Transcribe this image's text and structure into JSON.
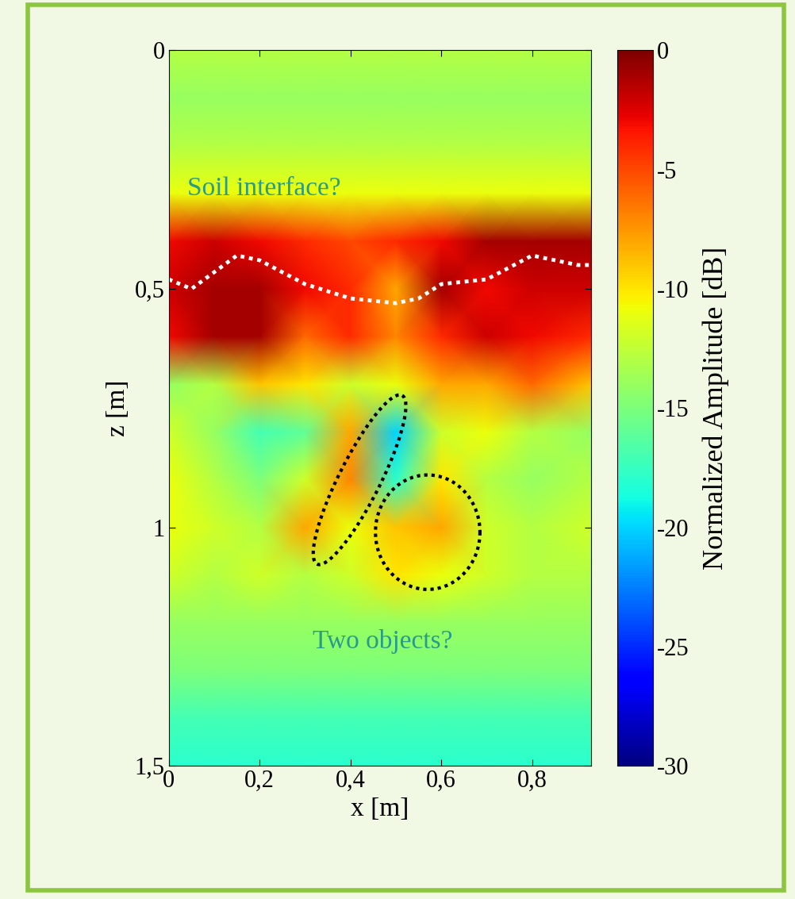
{
  "chart_data": {
    "type": "heatmap",
    "xlabel": "x [m]",
    "ylabel": "z [m]",
    "colorbar_label": "Normalized Amplitude [dB]",
    "x": [
      0,
      0.1,
      0.2,
      0.3,
      0.4,
      0.5,
      0.6,
      0.7,
      0.8,
      0.93
    ],
    "z": [
      0,
      0.1,
      0.2,
      0.3,
      0.4,
      0.5,
      0.6,
      0.7,
      0.8,
      0.9,
      1.0,
      1.1,
      1.2,
      1.3,
      1.4,
      1.5
    ],
    "cells": [
      [
        -13,
        -13,
        -13,
        -13,
        -13,
        -13,
        -13,
        -13,
        -13,
        -13
      ],
      [
        -14,
        -14,
        -14,
        -14,
        -14,
        -14,
        -14,
        -14,
        -14,
        -14
      ],
      [
        -13,
        -13,
        -13,
        -13,
        -13,
        -13,
        -13,
        -13,
        -13,
        -13
      ],
      [
        -11,
        -11,
        -11,
        -11,
        -11,
        -11,
        -11,
        -11,
        -11,
        -11
      ],
      [
        -3,
        -2,
        -3,
        -4,
        -5,
        -4,
        -3,
        -1,
        -1,
        -1
      ],
      [
        -2,
        -1,
        -1,
        -3,
        -4,
        -8,
        -1,
        -3,
        -2,
        -2
      ],
      [
        -3,
        -1,
        -1,
        -6,
        -4,
        -7,
        -4,
        -2,
        -3,
        -4
      ],
      [
        -14,
        -13,
        -9,
        -10,
        -12,
        -11,
        -8,
        -8,
        -6,
        -9
      ],
      [
        -12,
        -14,
        -17,
        -16,
        -8,
        -20,
        -12,
        -11,
        -13,
        -14
      ],
      [
        -11,
        -13,
        -15,
        -12,
        -7,
        -18,
        -10,
        -13,
        -14,
        -13
      ],
      [
        -11,
        -12,
        -13,
        -8,
        -11,
        -9,
        -8,
        -12,
        -13,
        -12
      ],
      [
        -12,
        -13,
        -12,
        -13,
        -12,
        -10,
        -11,
        -12,
        -13,
        -13
      ],
      [
        -14,
        -14,
        -14,
        -14,
        -14,
        -14,
        -14,
        -14,
        -14,
        -14
      ],
      [
        -15,
        -15,
        -15,
        -15,
        -15,
        -15,
        -15,
        -15,
        -15,
        -15
      ],
      [
        -17,
        -17,
        -17,
        -17,
        -17,
        -17,
        -17,
        -17,
        -17,
        -17
      ],
      [
        -18,
        -18,
        -18,
        -18,
        -18,
        -18,
        -18,
        -18,
        -18,
        -18
      ]
    ],
    "xlim": [
      0,
      0.93
    ],
    "ylim": [
      1.5,
      0
    ],
    "xticks": [
      {
        "value": 0,
        "label": "0"
      },
      {
        "value": 0.2,
        "label": "0,2"
      },
      {
        "value": 0.4,
        "label": "0,4"
      },
      {
        "value": 0.6,
        "label": "0,6"
      },
      {
        "value": 0.8,
        "label": "0,8"
      }
    ],
    "yticks": [
      {
        "value": 0,
        "label": "0"
      },
      {
        "value": 0.5,
        "label": "0,5"
      },
      {
        "value": 1,
        "label": "1"
      },
      {
        "value": 1.5,
        "label": "1,5"
      }
    ],
    "colorbar_range": [
      -30,
      0
    ],
    "colorbar_ticks": [
      0,
      -5,
      -10,
      -15,
      -20,
      -25,
      -30
    ],
    "annotations": [
      "Soil interface?",
      "Two objects?"
    ],
    "interface_line": {
      "x": [
        0,
        0.05,
        0.15,
        0.2,
        0.3,
        0.4,
        0.5,
        0.55,
        0.6,
        0.7,
        0.8,
        0.9,
        0.93
      ],
      "z": [
        0.48,
        0.5,
        0.43,
        0.44,
        0.49,
        0.52,
        0.53,
        0.52,
        0.49,
        0.48,
        0.43,
        0.45,
        0.45
      ]
    },
    "regions": [
      {
        "center": [
          0.42,
          0.9
        ],
        "radii": [
          0.2,
          0.045
        ],
        "angle": -62
      },
      {
        "center": [
          0.57,
          1.01
        ],
        "radii": [
          0.115,
          0.12
        ],
        "angle": 0
      }
    ]
  }
}
